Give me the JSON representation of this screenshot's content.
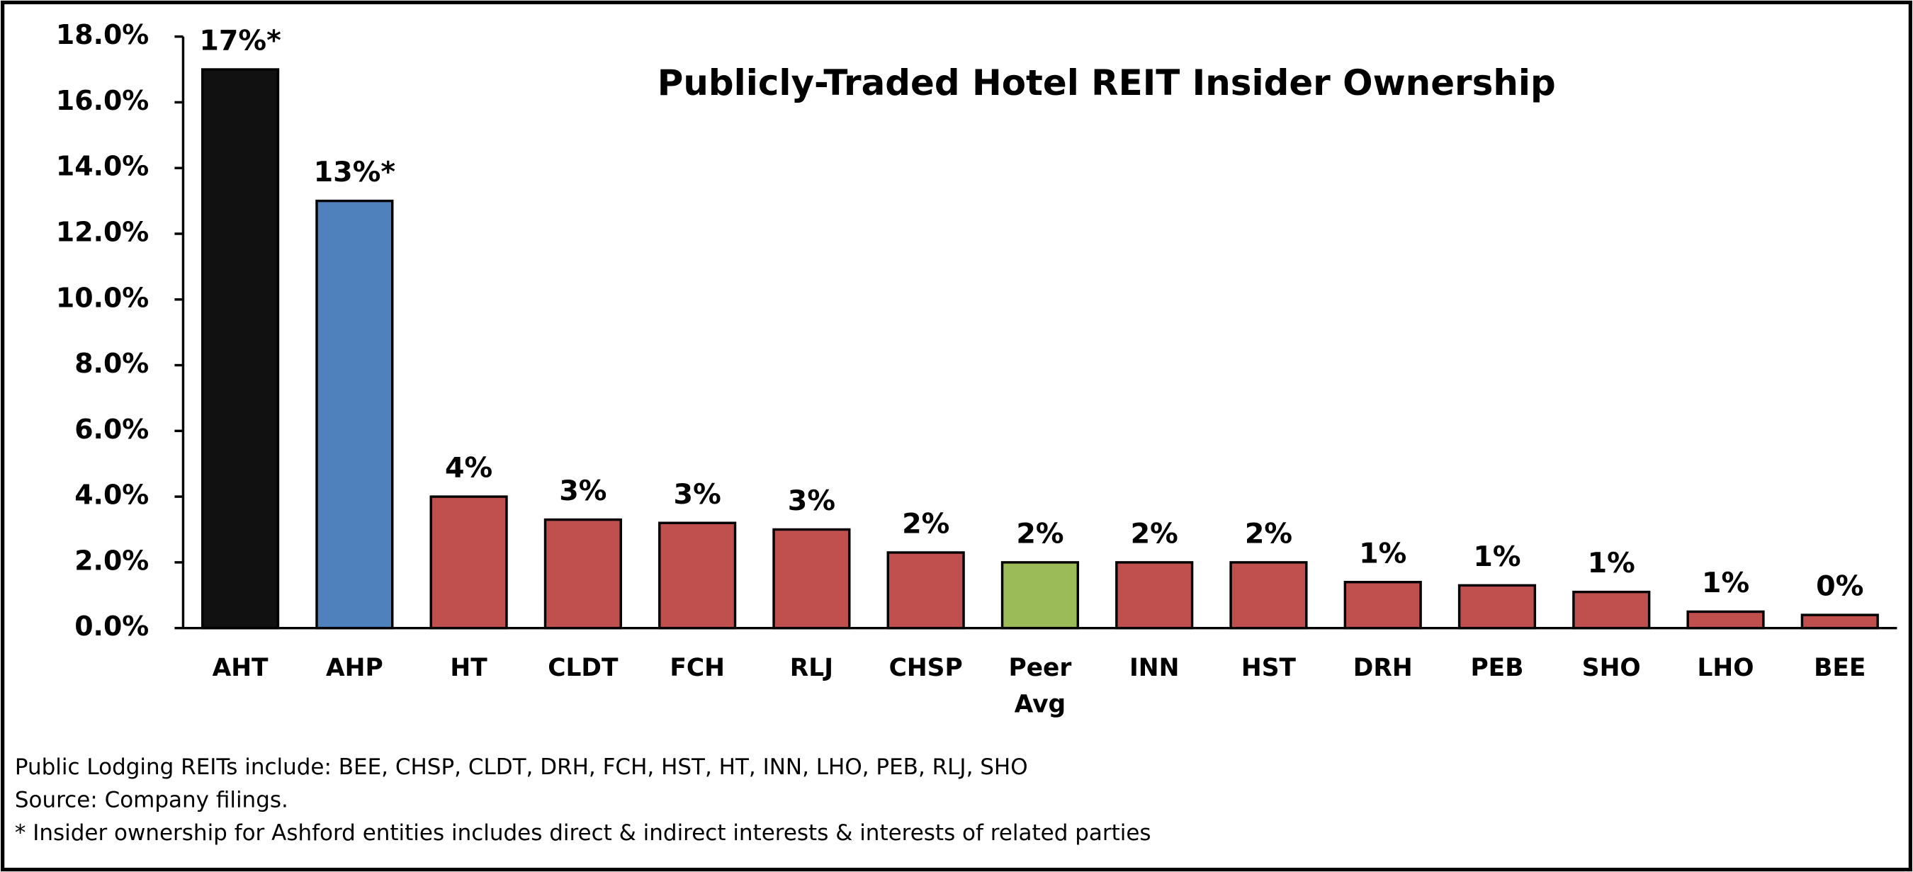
{
  "chart_data": {
    "type": "bar",
    "title": "Publicly-Traded  Hotel REIT Insider Ownership",
    "categories": [
      "AHT",
      "AHP",
      "HT",
      "CLDT",
      "FCH",
      "RLJ",
      "CHSP",
      "Peer Avg",
      "INN",
      "HST",
      "DRH",
      "PEB",
      "SHO",
      "LHO",
      "BEE"
    ],
    "values": [
      17,
      13,
      4.0,
      3.3,
      3.2,
      3.0,
      2.3,
      2.0,
      2.0,
      2.0,
      1.4,
      1.3,
      1.1,
      0.5,
      0.4
    ],
    "value_labels": [
      "17%*",
      "13%*",
      "4%",
      "3%",
      "3%",
      "3%",
      "2%",
      "2%",
      "2%",
      "2%",
      "1%",
      "1%",
      "1%",
      "1%",
      "0%"
    ],
    "colors": [
      "#111111",
      "#4f81bd",
      "#c0504d",
      "#c0504d",
      "#c0504d",
      "#c0504d",
      "#c0504d",
      "#9bbb59",
      "#c0504d",
      "#c0504d",
      "#c0504d",
      "#c0504d",
      "#c0504d",
      "#c0504d",
      "#c0504d"
    ],
    "ylim": [
      0,
      18
    ],
    "yticks": [
      {
        "value": 0,
        "label": "0.0%"
      },
      {
        "value": 2,
        "label": "2.0%"
      },
      {
        "value": 4,
        "label": "4.0%"
      },
      {
        "value": 6,
        "label": "6.0%"
      },
      {
        "value": 8,
        "label": "8.0%"
      },
      {
        "value": 10,
        "label": "10.0%"
      },
      {
        "value": 12,
        "label": "12.0%"
      },
      {
        "value": 14,
        "label": "14.0%"
      },
      {
        "value": 16,
        "label": "16.0%"
      },
      {
        "value": 18,
        "label": "18.0%"
      }
    ],
    "grid": false,
    "notes": [
      "Public Lodging REITs include: BEE, CHSP, CLDT, DRH, FCH, HST, HT, INN, LHO, PEB, RLJ, SHO",
      "Source: Company filings.",
      "* Insider ownership for Ashford entities includes direct & indirect interests & interests of related parties"
    ]
  }
}
